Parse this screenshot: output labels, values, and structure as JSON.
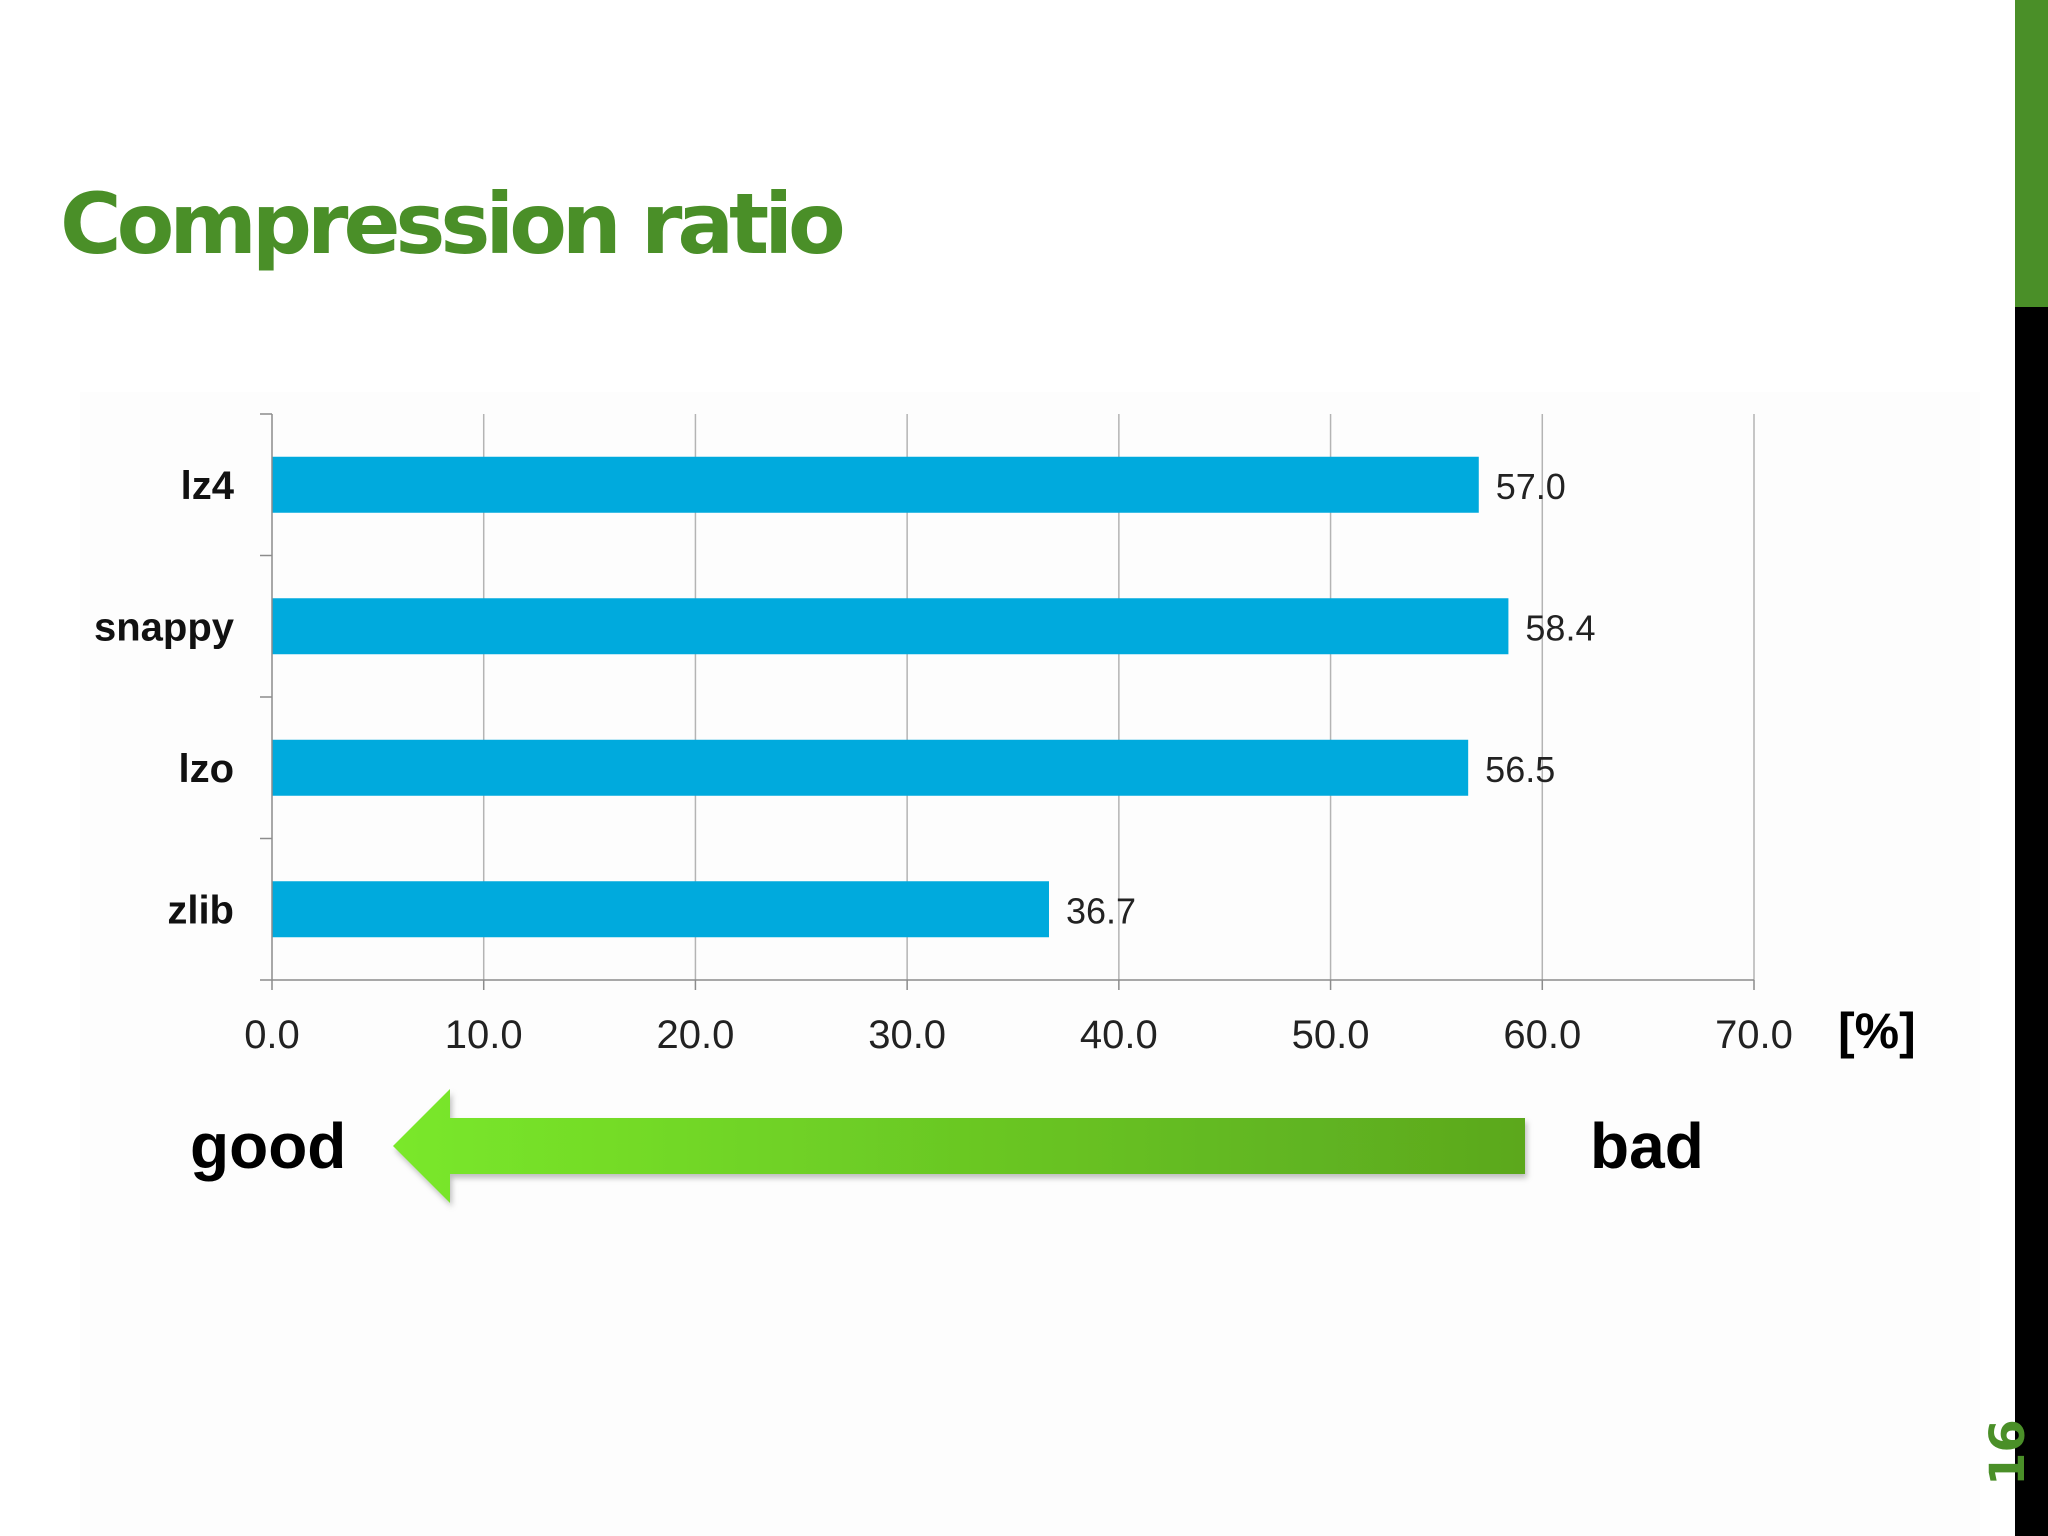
{
  "slide": {
    "title": "Compression ratio",
    "page_number": "16",
    "accent_color": "#4a8f28",
    "side_bar_color": "#000000",
    "side_bar_accent_color": "#4a8f28"
  },
  "chart_data": {
    "type": "bar",
    "orientation": "horizontal",
    "categories": [
      "lz4",
      "snappy",
      "lzo",
      "zlib"
    ],
    "values": [
      57.0,
      58.4,
      56.5,
      36.7
    ],
    "data_labels": [
      "57.0",
      "58.4",
      "56.5",
      "36.7"
    ],
    "xlim": [
      0,
      70
    ],
    "x_ticks": [
      0,
      10,
      20,
      30,
      40,
      50,
      60,
      70
    ],
    "x_tick_labels": [
      "0.0",
      "10.0",
      "20.0",
      "30.0",
      "40.0",
      "50.0",
      "60.0",
      "70.0"
    ],
    "xlabel": "[%]",
    "grid": true,
    "legend": "none",
    "bar_color": "#00aadd"
  },
  "annotation": {
    "good_label": "good",
    "bad_label": "bad",
    "direction": "right-to-left",
    "arrow_color_start": "#7ae82a",
    "arrow_color_end": "#5ba81e"
  }
}
